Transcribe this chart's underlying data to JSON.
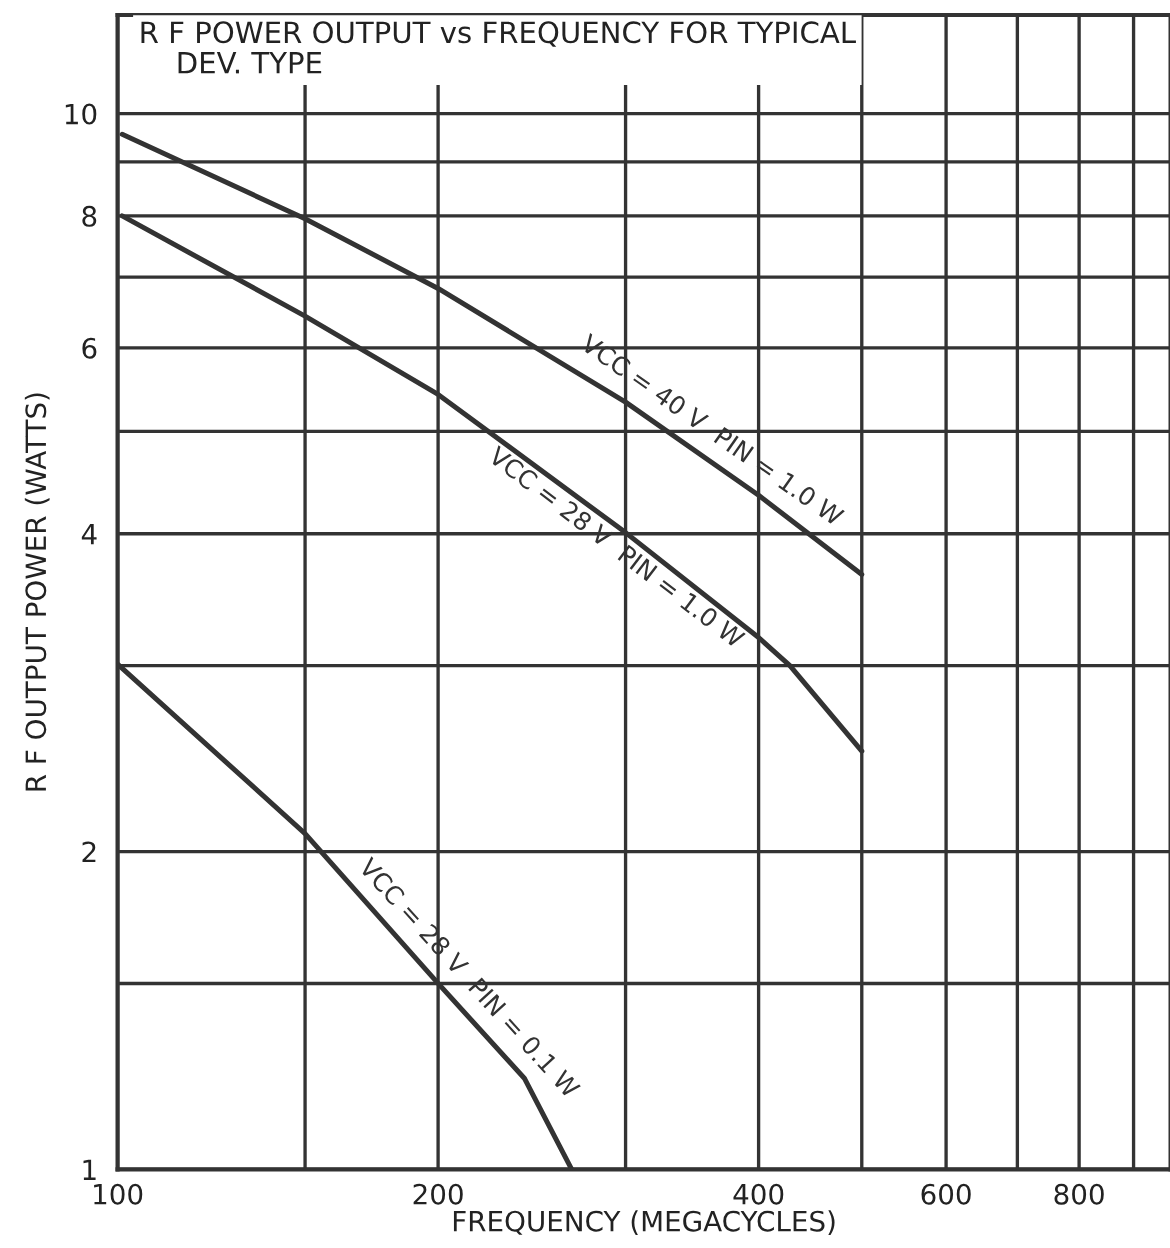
{
  "chart_data": {
    "type": "line",
    "title": "R F POWER OUTPUT vs FREQUENCY FOR TYPICAL\n    DEV. TYPE",
    "xlabel": "FREQUENCY (MEGACYCLES)",
    "ylabel": "R F OUTPUT POWER (WATTS)",
    "log": "xy",
    "grid": true,
    "legend": false,
    "marker": "none",
    "line_style": "solid",
    "xlim": [
      100,
      975
    ],
    "ylim": [
      1,
      12.4
    ],
    "xticks": [
      100,
      {
        "value": 150,
        "label": null
      },
      200,
      {
        "value": 300,
        "label": null
      },
      400,
      {
        "value": 500,
        "label": null
      },
      600,
      {
        "value": 700,
        "label": null
      },
      800,
      {
        "value": 900,
        "label": null
      }
    ],
    "yticks": [
      1,
      {
        "value": 1.5,
        "label": null
      },
      2,
      {
        "value": 3,
        "label": null
      },
      4,
      {
        "value": 5,
        "label": null
      },
      6,
      {
        "value": 7,
        "label": null
      },
      8,
      {
        "value": 9,
        "label": null
      },
      10
    ],
    "series": [
      {
        "name": "VCC = 40 V  PIN = 1.0 W",
        "color": "#333333",
        "x": [
          101,
          150,
          200,
          300,
          400,
          500
        ],
        "values": [
          9.56,
          7.95,
          6.83,
          5.33,
          4.35,
          3.66
        ]
      },
      {
        "name": "VCC = 28 V  PIN = 1.0 W",
        "color": "#333333",
        "x": [
          101,
          150,
          200,
          300,
          400,
          428,
          500
        ],
        "values": [
          8.0,
          6.43,
          5.42,
          4.01,
          3.19,
          3.0,
          2.49
        ]
      },
      {
        "name": "VCC = 28 V  PIN = 0.1 W",
        "color": "#333333",
        "x": [
          100,
          150,
          200,
          241,
          267
        ],
        "values": [
          3.01,
          2.08,
          1.5,
          1.22,
          1.0
        ]
      }
    ]
  }
}
